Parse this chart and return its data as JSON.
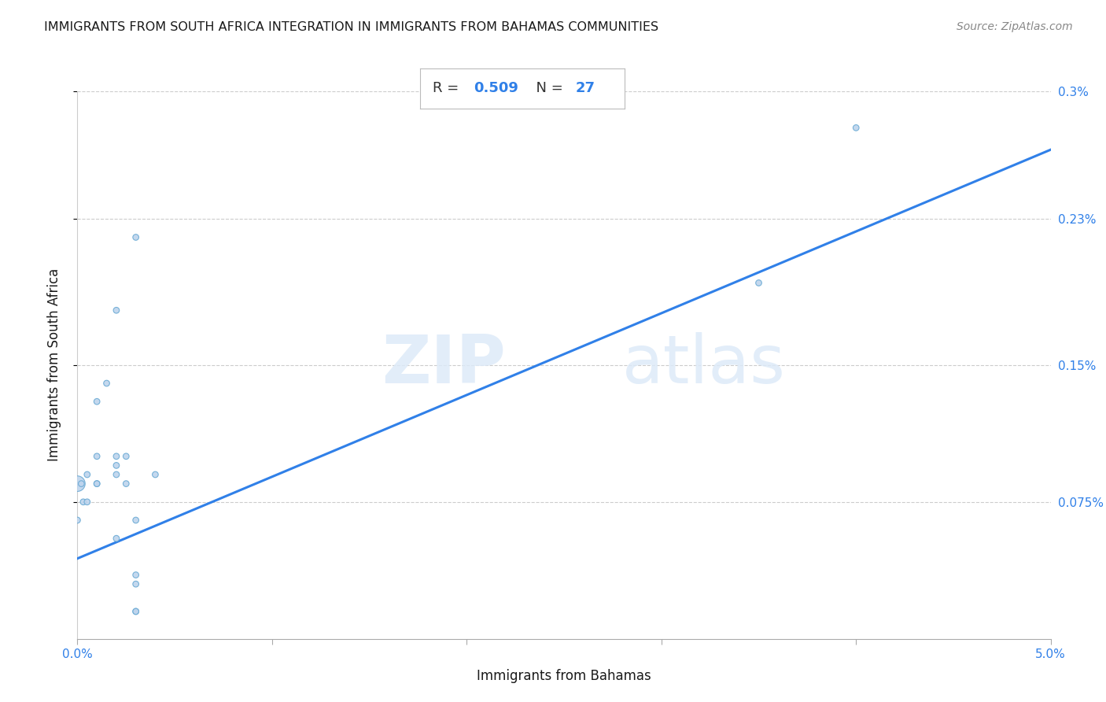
{
  "title": "IMMIGRANTS FROM SOUTH AFRICA INTEGRATION IN IMMIGRANTS FROM BAHAMAS COMMUNITIES",
  "source": "Source: ZipAtlas.com",
  "xlabel": "Immigrants from Bahamas",
  "ylabel": "Immigrants from South Africa",
  "R": 0.509,
  "N": 27,
  "xlim": [
    0.0,
    0.05
  ],
  "ylim": [
    0.0,
    0.003
  ],
  "xticks": [
    0.0,
    0.01,
    0.02,
    0.03,
    0.04,
    0.05
  ],
  "xticklabels": [
    "0.0%",
    "",
    "",
    "",
    "",
    "5.0%"
  ],
  "yticks": [
    0.00075,
    0.0015,
    0.0023,
    0.003
  ],
  "yticklabels": [
    "0.075%",
    "0.15%",
    "0.23%",
    "0.3%"
  ],
  "watermark_zip": "ZIP",
  "watermark_atlas": "atlas",
  "dot_color": "#bed4ed",
  "dot_edge_color": "#6aaad4",
  "line_color": "#3080e8",
  "grid_color": "#cccccc",
  "title_color": "#1a1a1a",
  "axis_label_color": "#1a1a1a",
  "tick_label_color": "#3080e8",
  "rn_label_color": "#333333",
  "source_color": "#888888",
  "scatter_x": [
    0.0,
    0.0002,
    0.0003,
    0.0005,
    0.0005,
    0.001,
    0.001,
    0.001,
    0.001,
    0.0015,
    0.002,
    0.002,
    0.002,
    0.002,
    0.002,
    0.0025,
    0.0025,
    0.003,
    0.003,
    0.003,
    0.003,
    0.003,
    0.003,
    0.004,
    0.035,
    0.04,
    0.0
  ],
  "scatter_y": [
    0.00085,
    0.00085,
    0.00075,
    0.00075,
    0.0009,
    0.001,
    0.00085,
    0.00085,
    0.0013,
    0.0014,
    0.001,
    0.00055,
    0.00095,
    0.0009,
    0.0018,
    0.001,
    0.00085,
    0.0003,
    0.00035,
    0.00015,
    0.00015,
    0.0022,
    0.00065,
    0.0009,
    0.00195,
    0.0028,
    0.00065
  ],
  "scatter_sizes": [
    200,
    30,
    30,
    30,
    30,
    30,
    30,
    30,
    30,
    30,
    30,
    30,
    30,
    30,
    30,
    30,
    30,
    30,
    30,
    30,
    30,
    30,
    30,
    30,
    30,
    30,
    30
  ],
  "line_x0": 0.0,
  "line_y0": 0.00044,
  "line_x1": 0.05,
  "line_y1": 0.00268
}
